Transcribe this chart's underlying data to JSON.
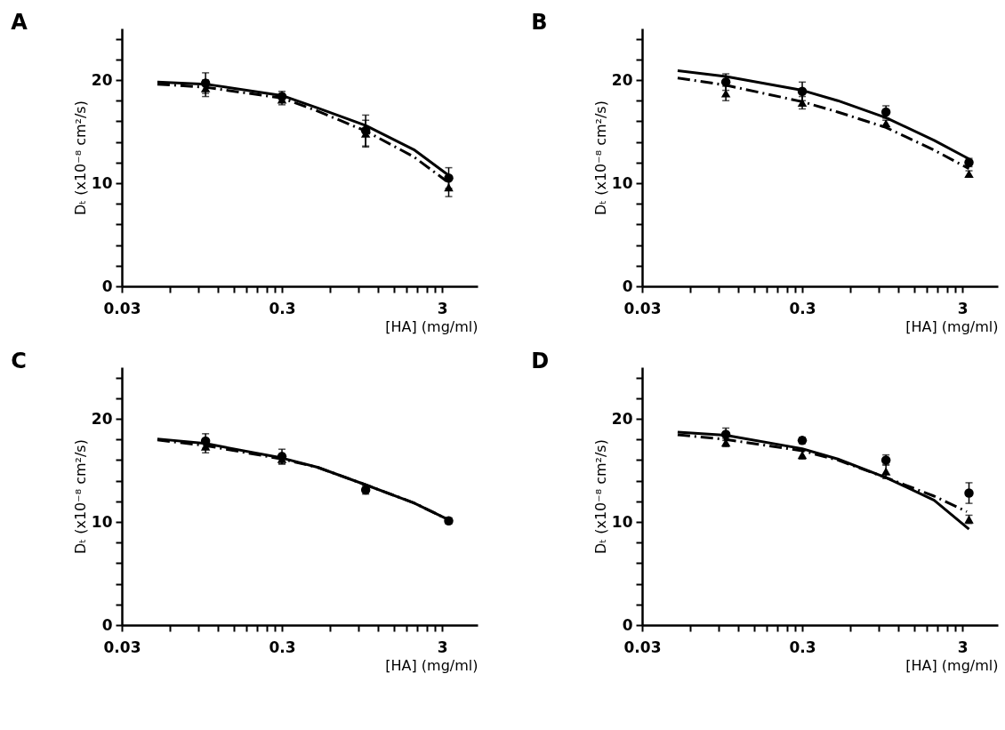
{
  "chart_data": [
    {
      "type": "scatter",
      "title": "A",
      "xlabel": "[HA] (mg/ml)",
      "ylabel": "Dₜ (x10⁻⁸ cm²/s)",
      "log": "x",
      "grid": false,
      "x": [
        0.1,
        0.3,
        1.0,
        3.3
      ],
      "xlim": [
        0.03,
        5
      ],
      "xticks": [
        0.03,
        {
          "value": 0.06,
          "label": null
        },
        {
          "value": 0.09,
          "label": null
        },
        {
          "value": 0.12,
          "label": null
        },
        {
          "value": 0.15,
          "label": null
        },
        {
          "value": 0.18,
          "label": null
        },
        {
          "value": 0.21,
          "label": null
        },
        {
          "value": 0.24,
          "label": null
        },
        {
          "value": 0.27,
          "label": null
        },
        0.3,
        {
          "value": 0.6,
          "label": null
        },
        {
          "value": 0.9,
          "label": null
        },
        {
          "value": 1.2,
          "label": null
        },
        {
          "value": 1.5,
          "label": null
        },
        {
          "value": 1.8,
          "label": null
        },
        {
          "value": 2.1,
          "label": null
        },
        {
          "value": 2.4,
          "label": null
        },
        {
          "value": 2.7,
          "label": null
        },
        3
      ],
      "ylim": [
        0,
        25
      ],
      "yticks": [
        0,
        {
          "value": 2,
          "label": null
        },
        {
          "value": 4,
          "label": null
        },
        {
          "value": 6,
          "label": null
        },
        {
          "value": 8,
          "label": null
        },
        10,
        {
          "value": 12,
          "label": null
        },
        {
          "value": 14,
          "label": null
        },
        {
          "value": 16,
          "label": null
        },
        {
          "value": 18,
          "label": null
        },
        20,
        {
          "value": 22,
          "label": null
        },
        {
          "value": 24,
          "label": null
        }
      ],
      "series": [
        {
          "type": "line",
          "color": "#000000",
          "line_style": "solid",
          "x": [
            0.05,
            0.1,
            0.3,
            0.5,
            1.0,
            2.0,
            3.3
          ],
          "values": [
            19.8,
            19.6,
            18.5,
            17.3,
            15.6,
            13.25,
            10.75
          ]
        },
        {
          "type": "line",
          "color": "#000000",
          "line_style": "dashed",
          "x": [
            0.05,
            0.1,
            0.3,
            0.5,
            1.0,
            2.0,
            3.2
          ],
          "values": [
            19.6,
            19.3,
            18.25,
            17.0,
            15.05,
            12.55,
            10.2
          ]
        },
        {
          "type": "scatter",
          "color": "#000000",
          "marker": "circle",
          "values": [
            19.7,
            18.4,
            15.1,
            10.5
          ],
          "errors": [
            1.0,
            0.5,
            1.5,
            1.0
          ]
        },
        {
          "type": "scatter",
          "color": "#000000",
          "marker": "triangle",
          "values": [
            19.2,
            18.1,
            14.8,
            9.6
          ],
          "errors": [
            0.8,
            0.5,
            1.3,
            0.9
          ]
        }
      ]
    },
    {
      "type": "scatter",
      "title": "B",
      "xlabel": "[HA] (mg/ml)",
      "ylabel": "Dₜ (x10⁻⁸ cm²/s)",
      "log": "x",
      "grid": false,
      "x": [
        0.1,
        0.3,
        1.0,
        3.3
      ],
      "xlim": [
        0.03,
        5
      ],
      "xticks": [
        0.03,
        {
          "value": 0.06,
          "label": null
        },
        {
          "value": 0.09,
          "label": null
        },
        {
          "value": 0.12,
          "label": null
        },
        {
          "value": 0.15,
          "label": null
        },
        {
          "value": 0.18,
          "label": null
        },
        {
          "value": 0.21,
          "label": null
        },
        {
          "value": 0.24,
          "label": null
        },
        {
          "value": 0.27,
          "label": null
        },
        0.3,
        {
          "value": 0.6,
          "label": null
        },
        {
          "value": 0.9,
          "label": null
        },
        {
          "value": 1.2,
          "label": null
        },
        {
          "value": 1.5,
          "label": null
        },
        {
          "value": 1.8,
          "label": null
        },
        {
          "value": 2.1,
          "label": null
        },
        {
          "value": 2.4,
          "label": null
        },
        {
          "value": 2.7,
          "label": null
        },
        3
      ],
      "ylim": [
        0,
        25
      ],
      "yticks": [
        0,
        {
          "value": 2,
          "label": null
        },
        {
          "value": 4,
          "label": null
        },
        {
          "value": 6,
          "label": null
        },
        {
          "value": 8,
          "label": null
        },
        10,
        {
          "value": 12,
          "label": null
        },
        {
          "value": 14,
          "label": null
        },
        {
          "value": 16,
          "label": null
        },
        {
          "value": 18,
          "label": null
        },
        20,
        {
          "value": 22,
          "label": null
        },
        {
          "value": 24,
          "label": null
        }
      ],
      "series": [
        {
          "type": "line",
          "color": "#000000",
          "line_style": "solid",
          "x": [
            0.05,
            0.1,
            0.3,
            0.5,
            1.0,
            2.0,
            3.3
          ],
          "values": [
            20.9,
            20.35,
            19.0,
            18.0,
            16.35,
            14.15,
            12.35
          ]
        },
        {
          "type": "line",
          "color": "#000000",
          "line_style": "dashed",
          "x": [
            0.05,
            0.1,
            0.3,
            0.5,
            1.0,
            2.0,
            3.3
          ],
          "values": [
            20.2,
            19.5,
            17.9,
            16.9,
            15.4,
            13.2,
            11.4
          ]
        },
        {
          "type": "scatter",
          "color": "#000000",
          "marker": "circle",
          "values": [
            19.8,
            18.9,
            16.9,
            12.0
          ],
          "errors": [
            0.8,
            0.9,
            0.6,
            0.4
          ]
        },
        {
          "type": "scatter",
          "color": "#000000",
          "marker": "triangle",
          "values": [
            18.7,
            17.8,
            15.8,
            10.9
          ],
          "errors": [
            0.7,
            0.6,
            0.3,
            0.3
          ]
        }
      ]
    },
    {
      "type": "scatter",
      "title": "C",
      "xlabel": "[HA] (mg/ml)",
      "ylabel": "Dₜ (x10⁻⁸ cm²/s)",
      "log": "x",
      "grid": false,
      "x": [
        0.1,
        0.3,
        1.0,
        3.3
      ],
      "xlim": [
        0.03,
        5
      ],
      "xticks": [
        0.03,
        {
          "value": 0.06,
          "label": null
        },
        {
          "value": 0.09,
          "label": null
        },
        {
          "value": 0.12,
          "label": null
        },
        {
          "value": 0.15,
          "label": null
        },
        {
          "value": 0.18,
          "label": null
        },
        {
          "value": 0.21,
          "label": null
        },
        {
          "value": 0.24,
          "label": null
        },
        {
          "value": 0.27,
          "label": null
        },
        0.3,
        {
          "value": 0.6,
          "label": null
        },
        {
          "value": 0.9,
          "label": null
        },
        {
          "value": 1.2,
          "label": null
        },
        {
          "value": 1.5,
          "label": null
        },
        {
          "value": 1.8,
          "label": null
        },
        {
          "value": 2.1,
          "label": null
        },
        {
          "value": 2.4,
          "label": null
        },
        {
          "value": 2.7,
          "label": null
        },
        3
      ],
      "ylim": [
        0,
        25
      ],
      "yticks": [
        0,
        {
          "value": 2,
          "label": null
        },
        {
          "value": 4,
          "label": null
        },
        {
          "value": 6,
          "label": null
        },
        {
          "value": 8,
          "label": null
        },
        10,
        {
          "value": 12,
          "label": null
        },
        {
          "value": 14,
          "label": null
        },
        {
          "value": 16,
          "label": null
        },
        {
          "value": 18,
          "label": null
        },
        20,
        {
          "value": 22,
          "label": null
        },
        {
          "value": 24,
          "label": null
        }
      ],
      "series": [
        {
          "type": "line",
          "color": "#000000",
          "line_style": "solid",
          "x": [
            0.05,
            0.1,
            0.3,
            0.5,
            1.0,
            2.0,
            3.3
          ],
          "values": [
            18.05,
            17.6,
            16.2,
            15.3,
            13.6,
            11.85,
            10.2
          ]
        },
        {
          "type": "line",
          "color": "#000000",
          "line_style": "dashed",
          "x": [
            0.05,
            0.1,
            0.3,
            0.5,
            1.0,
            2.0,
            3.3
          ],
          "values": [
            17.95,
            17.4,
            16.1,
            15.3,
            13.6,
            11.85,
            10.2
          ]
        },
        {
          "type": "scatter",
          "color": "#000000",
          "marker": "circle",
          "values": [
            17.85,
            16.35,
            13.1,
            10.1
          ],
          "errors": [
            0.7,
            0.7,
            0.4,
            0.3
          ]
        },
        {
          "type": "scatter",
          "color": "#000000",
          "marker": "triangle",
          "values": [
            17.3,
            16.1,
            null,
            null
          ],
          "errors": [
            0.6,
            0.5,
            null,
            null
          ]
        }
      ]
    },
    {
      "type": "scatter",
      "title": "D",
      "xlabel": "[HA] (mg/ml)",
      "ylabel": "Dₜ (x10⁻⁸ cm²/s)",
      "log": "x",
      "grid": false,
      "x": [
        0.1,
        0.3,
        1.0,
        3.3
      ],
      "xlim": [
        0.03,
        5
      ],
      "xticks": [
        0.03,
        {
          "value": 0.06,
          "label": null
        },
        {
          "value": 0.09,
          "label": null
        },
        {
          "value": 0.12,
          "label": null
        },
        {
          "value": 0.15,
          "label": null
        },
        {
          "value": 0.18,
          "label": null
        },
        {
          "value": 0.21,
          "label": null
        },
        {
          "value": 0.24,
          "label": null
        },
        {
          "value": 0.27,
          "label": null
        },
        0.3,
        {
          "value": 0.6,
          "label": null
        },
        {
          "value": 0.9,
          "label": null
        },
        {
          "value": 1.2,
          "label": null
        },
        {
          "value": 1.5,
          "label": null
        },
        {
          "value": 1.8,
          "label": null
        },
        {
          "value": 2.1,
          "label": null
        },
        {
          "value": 2.4,
          "label": null
        },
        {
          "value": 2.7,
          "label": null
        },
        3
      ],
      "ylim": [
        0,
        25
      ],
      "yticks": [
        0,
        {
          "value": 2,
          "label": null
        },
        {
          "value": 4,
          "label": null
        },
        {
          "value": 6,
          "label": null
        },
        {
          "value": 8,
          "label": null
        },
        10,
        {
          "value": 12,
          "label": null
        },
        {
          "value": 14,
          "label": null
        },
        {
          "value": 16,
          "label": null
        },
        {
          "value": 18,
          "label": null
        },
        20,
        {
          "value": 22,
          "label": null
        },
        {
          "value": 24,
          "label": null
        }
      ],
      "series": [
        {
          "type": "line",
          "color": "#000000",
          "line_style": "solid",
          "x": [
            0.05,
            0.1,
            0.3,
            0.5,
            1.0,
            2.0,
            3.3
          ],
          "values": [
            18.7,
            18.4,
            17.1,
            16.1,
            14.3,
            12.1,
            9.3
          ]
        },
        {
          "type": "line",
          "color": "#000000",
          "line_style": "dashed",
          "x": [
            0.05,
            0.1,
            0.3,
            0.5,
            1.0,
            2.0,
            3.2
          ],
          "values": [
            18.45,
            18.0,
            16.9,
            16.0,
            14.3,
            12.5,
            11.0
          ]
        },
        {
          "type": "scatter",
          "color": "#000000",
          "marker": "circle",
          "values": [
            18.5,
            17.9,
            16.0,
            12.8
          ],
          "errors": [
            0.6,
            0.3,
            0.5,
            1.0
          ]
        },
        {
          "type": "scatter",
          "color": "#000000",
          "marker": "triangle",
          "values": [
            17.7,
            16.5,
            14.9,
            10.25
          ],
          "errors": [
            0.4,
            0.4,
            0.7,
            0.4
          ]
        }
      ]
    }
  ]
}
